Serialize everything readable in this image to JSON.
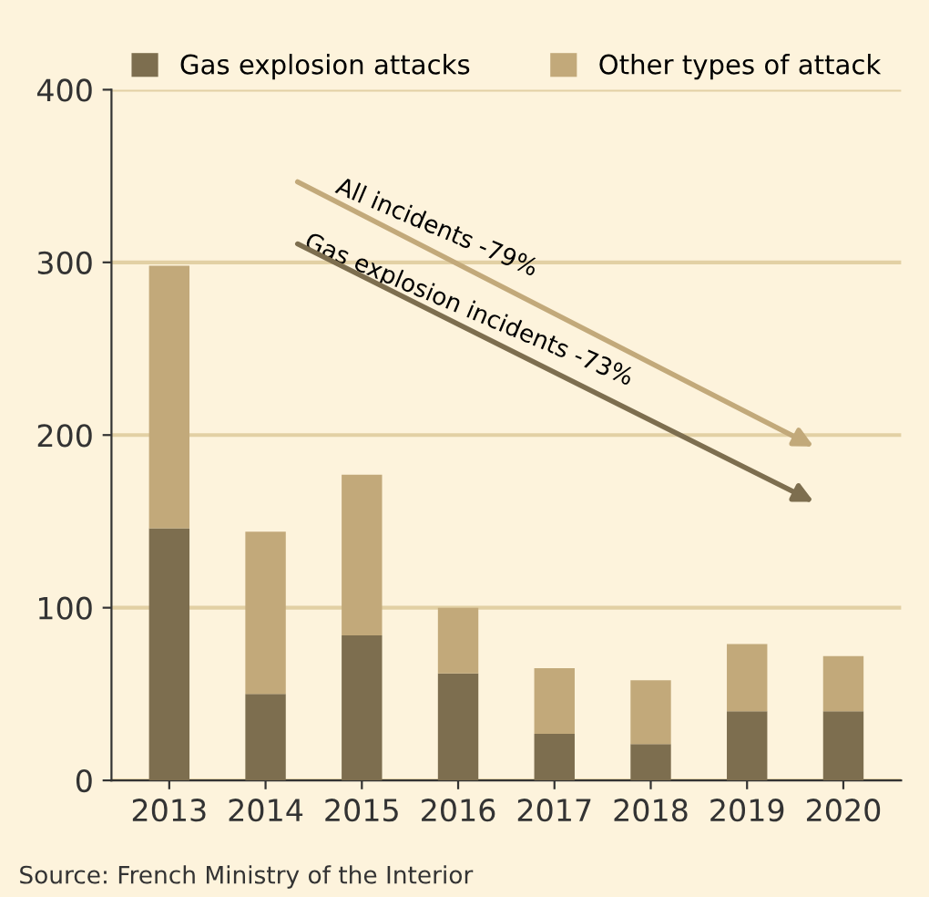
{
  "chart_data": {
    "type": "bar",
    "stacked": true,
    "categories": [
      "2013",
      "2014",
      "2015",
      "2016",
      "2017",
      "2018",
      "2019",
      "2020"
    ],
    "series": [
      {
        "name": "Gas explosion attacks",
        "color": "#7d6e4f",
        "values": [
          146,
          50,
          84,
          62,
          27,
          21,
          40,
          40
        ]
      },
      {
        "name": "Other types of attack",
        "color": "#c2a97a",
        "values": [
          152,
          94,
          93,
          38,
          38,
          37,
          39,
          32
        ]
      }
    ],
    "ylim": [
      0,
      400
    ],
    "yticks": [
      0,
      100,
      200,
      300,
      400
    ],
    "grid": "y",
    "legend": "top",
    "annotations": [
      "All incidents -79%",
      "Gas explosion incidents -73%",
      "Source: French Ministry of the Interior"
    ]
  }
}
